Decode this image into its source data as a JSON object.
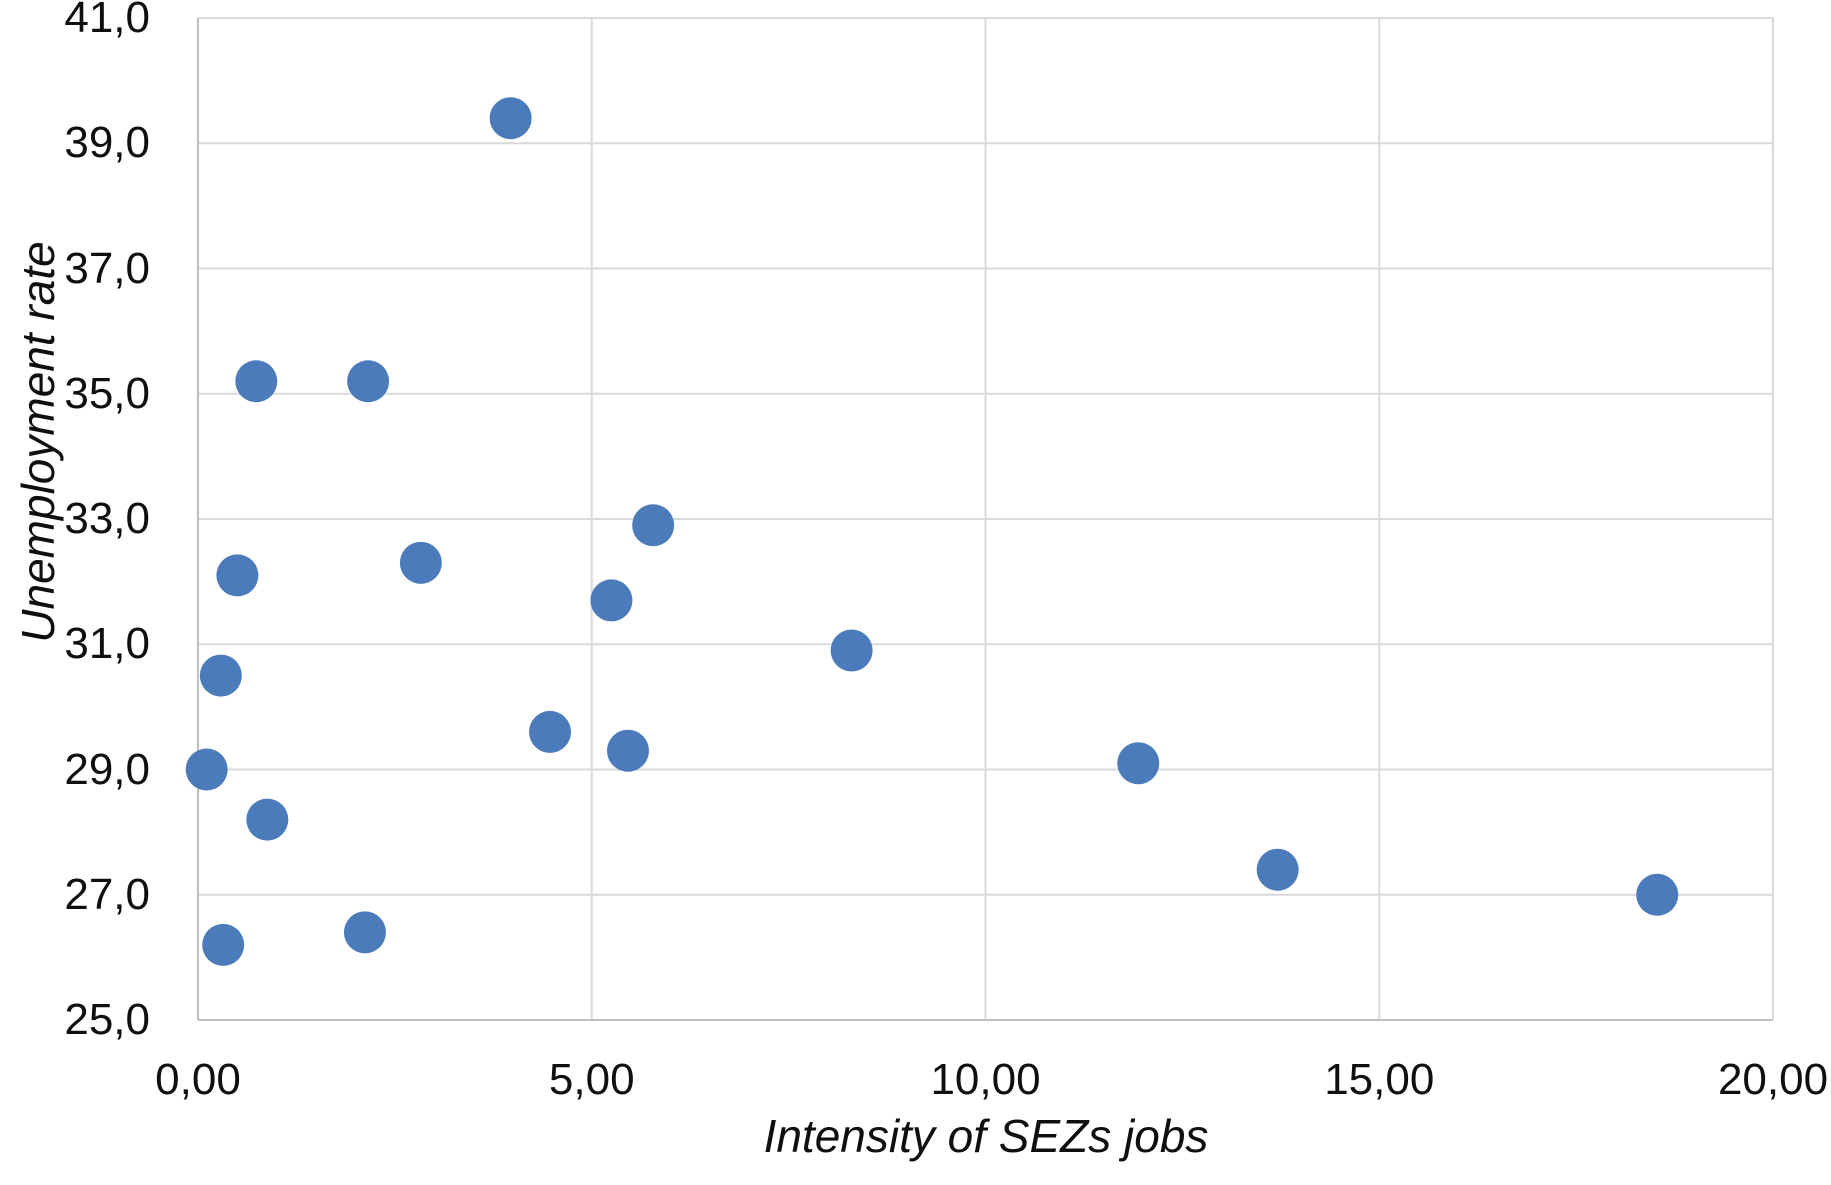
{
  "chart_data": {
    "type": "scatter",
    "title": "",
    "xlabel": "Intensity of SEZs jobs",
    "ylabel": "Unemployment rate",
    "xlim": [
      0,
      20
    ],
    "ylim": [
      25,
      41
    ],
    "grid": true,
    "legend": false,
    "xtick_values": [
      0,
      5,
      10,
      15,
      20
    ],
    "xtick_labels": [
      "0,00",
      "5,00",
      "10,00",
      "15,00",
      "20,00"
    ],
    "ytick_values": [
      25,
      27,
      29,
      31,
      33,
      35,
      37,
      39,
      41
    ],
    "ytick_labels": [
      "25,0",
      "27,0",
      "29,0",
      "31,0",
      "33,0",
      "35,0",
      "37,0",
      "39,0",
      "41,0"
    ],
    "points": [
      [
        3.97,
        39.4
      ],
      [
        0.74,
        35.2
      ],
      [
        2.16,
        35.2
      ],
      [
        5.78,
        32.9
      ],
      [
        2.83,
        32.3
      ],
      [
        0.5,
        32.1
      ],
      [
        5.25,
        31.7
      ],
      [
        8.3,
        30.9
      ],
      [
        0.29,
        30.5
      ],
      [
        4.47,
        29.6
      ],
      [
        5.46,
        29.3
      ],
      [
        11.94,
        29.1
      ],
      [
        0.11,
        29.0
      ],
      [
        0.88,
        28.2
      ],
      [
        13.71,
        27.4
      ],
      [
        18.53,
        27.0
      ],
      [
        2.12,
        26.4
      ],
      [
        0.32,
        26.2
      ]
    ],
    "marker_color": "#4C7BBC",
    "gridline_color": "#D9D9D9",
    "axis_line_color": "#BFBFBF",
    "text_color": "#0f0f0f",
    "background_color": "#FFFFFF"
  }
}
